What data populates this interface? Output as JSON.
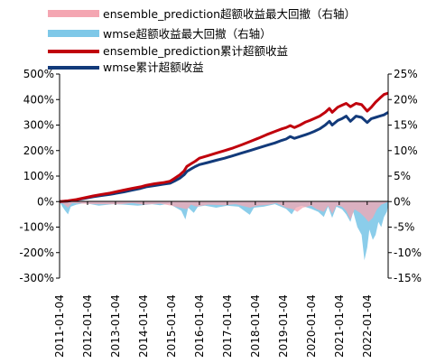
{
  "chart_data": {
    "type": "line",
    "legend_placement": "top",
    "grid": false,
    "x_ticks": [
      "2011-01-04",
      "2012-01-04",
      "2013-01-04",
      "2014-01-04",
      "2015-01-04",
      "2016-01-04",
      "2017-01-04",
      "2018-01-04",
      "2019-01-04",
      "2020-01-04",
      "2021-01-04",
      "2022-01-04"
    ],
    "x_range": [
      2011.0,
      2022.75
    ],
    "y_left": {
      "ticks": [
        "500%",
        "400%",
        "300%",
        "200%",
        "100%",
        "0%",
        "-100%",
        "-200%",
        "-300%"
      ],
      "range": [
        -300,
        500
      ],
      "unit": "%"
    },
    "y_right": {
      "ticks": [
        "25%",
        "20%",
        "15%",
        "10%",
        "5%",
        "0%",
        "-5%",
        "-10%",
        "-15%"
      ],
      "range": [
        -15,
        25
      ],
      "unit": "%"
    },
    "legend": [
      {
        "label": "ensemble_prediction超额收益最大回撤（右轴）",
        "kind": "area",
        "color": "#f4a6b2"
      },
      {
        "label": "wmse超额收益最大回撤（右轴）",
        "kind": "area",
        "color": "#7ec8e8"
      },
      {
        "label": "ensemble_prediction累计超额收益",
        "kind": "line",
        "color": "#c0000c"
      },
      {
        "label": "wmse累计超额收益",
        "kind": "line",
        "color": "#123a7a"
      }
    ],
    "series": [
      {
        "name": "ensemble_prediction累计超额收益",
        "axis": "left",
        "color": "#c0000c",
        "points": [
          [
            2011.0,
            0
          ],
          [
            2011.3,
            3
          ],
          [
            2011.6,
            8
          ],
          [
            2011.9,
            15
          ],
          [
            2012.2,
            22
          ],
          [
            2012.5,
            28
          ],
          [
            2012.8,
            33
          ],
          [
            2013.0,
            38
          ],
          [
            2013.3,
            45
          ],
          [
            2013.6,
            52
          ],
          [
            2013.9,
            58
          ],
          [
            2014.1,
            64
          ],
          [
            2014.4,
            70
          ],
          [
            2014.7,
            74
          ],
          [
            2014.95,
            80
          ],
          [
            2015.1,
            90
          ],
          [
            2015.3,
            105
          ],
          [
            2015.45,
            120
          ],
          [
            2015.55,
            138
          ],
          [
            2015.7,
            148
          ],
          [
            2015.85,
            158
          ],
          [
            2016.0,
            170
          ],
          [
            2016.3,
            180
          ],
          [
            2016.6,
            190
          ],
          [
            2016.9,
            200
          ],
          [
            2017.2,
            210
          ],
          [
            2017.5,
            222
          ],
          [
            2017.8,
            235
          ],
          [
            2018.1,
            248
          ],
          [
            2018.4,
            262
          ],
          [
            2018.7,
            275
          ],
          [
            2018.95,
            285
          ],
          [
            2019.1,
            290
          ],
          [
            2019.25,
            298
          ],
          [
            2019.4,
            290
          ],
          [
            2019.6,
            300
          ],
          [
            2019.8,
            312
          ],
          [
            2019.95,
            318
          ],
          [
            2020.1,
            325
          ],
          [
            2020.3,
            335
          ],
          [
            2020.5,
            350
          ],
          [
            2020.65,
            365
          ],
          [
            2020.75,
            350
          ],
          [
            2020.95,
            370
          ],
          [
            2021.1,
            378
          ],
          [
            2021.25,
            385
          ],
          [
            2021.4,
            372
          ],
          [
            2021.6,
            385
          ],
          [
            2021.8,
            380
          ],
          [
            2022.0,
            355
          ],
          [
            2022.15,
            370
          ],
          [
            2022.3,
            390
          ],
          [
            2022.45,
            405
          ],
          [
            2022.6,
            420
          ],
          [
            2022.75,
            425
          ]
        ]
      },
      {
        "name": "wmse累计超额收益",
        "axis": "left",
        "color": "#123a7a",
        "points": [
          [
            2011.0,
            0
          ],
          [
            2011.3,
            2
          ],
          [
            2011.6,
            7
          ],
          [
            2011.9,
            13
          ],
          [
            2012.2,
            19
          ],
          [
            2012.5,
            24
          ],
          [
            2012.8,
            28
          ],
          [
            2013.0,
            32
          ],
          [
            2013.3,
            38
          ],
          [
            2013.6,
            45
          ],
          [
            2013.9,
            52
          ],
          [
            2014.1,
            58
          ],
          [
            2014.4,
            63
          ],
          [
            2014.7,
            68
          ],
          [
            2014.95,
            72
          ],
          [
            2015.1,
            80
          ],
          [
            2015.3,
            92
          ],
          [
            2015.45,
            105
          ],
          [
            2015.55,
            118
          ],
          [
            2015.7,
            128
          ],
          [
            2015.85,
            137
          ],
          [
            2016.0,
            145
          ],
          [
            2016.3,
            153
          ],
          [
            2016.6,
            162
          ],
          [
            2016.9,
            170
          ],
          [
            2017.2,
            180
          ],
          [
            2017.5,
            190
          ],
          [
            2017.8,
            200
          ],
          [
            2018.1,
            210
          ],
          [
            2018.4,
            220
          ],
          [
            2018.7,
            230
          ],
          [
            2018.95,
            240
          ],
          [
            2019.1,
            245
          ],
          [
            2019.25,
            255
          ],
          [
            2019.4,
            248
          ],
          [
            2019.6,
            255
          ],
          [
            2019.8,
            262
          ],
          [
            2019.95,
            268
          ],
          [
            2020.1,
            275
          ],
          [
            2020.3,
            285
          ],
          [
            2020.5,
            300
          ],
          [
            2020.65,
            315
          ],
          [
            2020.75,
            300
          ],
          [
            2020.95,
            318
          ],
          [
            2021.1,
            325
          ],
          [
            2021.25,
            335
          ],
          [
            2021.4,
            315
          ],
          [
            2021.6,
            335
          ],
          [
            2021.8,
            330
          ],
          [
            2022.0,
            310
          ],
          [
            2022.15,
            325
          ],
          [
            2022.3,
            330
          ],
          [
            2022.45,
            335
          ],
          [
            2022.6,
            340
          ],
          [
            2022.75,
            350
          ]
        ]
      },
      {
        "name": "ensemble_prediction超额收益最大回撤（右轴）",
        "axis": "right",
        "color": "#f4a6b2",
        "points": [
          [
            2011.0,
            0
          ],
          [
            2011.15,
            -0.5
          ],
          [
            2011.3,
            -1.2
          ],
          [
            2011.45,
            -0.3
          ],
          [
            2011.8,
            -0.4
          ],
          [
            2012.3,
            -0.5
          ],
          [
            2013.2,
            -0.5
          ],
          [
            2013.6,
            -0.3
          ],
          [
            2014.0,
            -0.6
          ],
          [
            2014.6,
            -0.4
          ],
          [
            2015.0,
            -0.8
          ],
          [
            2015.55,
            -1.5
          ],
          [
            2015.7,
            -0.6
          ],
          [
            2015.9,
            -1.0
          ],
          [
            2016.3,
            -0.6
          ],
          [
            2016.9,
            -0.7
          ],
          [
            2017.3,
            -0.5
          ],
          [
            2017.8,
            -1.2
          ],
          [
            2018.1,
            -0.8
          ],
          [
            2018.5,
            -0.6
          ],
          [
            2018.75,
            -0.3
          ],
          [
            2019.1,
            -1.2
          ],
          [
            2019.35,
            -1.5
          ],
          [
            2019.5,
            -2.0
          ],
          [
            2019.7,
            -1.2
          ],
          [
            2020.0,
            -0.8
          ],
          [
            2020.2,
            -1.5
          ],
          [
            2020.45,
            -2.0
          ],
          [
            2020.6,
            -0.8
          ],
          [
            2020.75,
            -2.4
          ],
          [
            2020.9,
            -0.8
          ],
          [
            2021.1,
            -1.0
          ],
          [
            2021.25,
            -1.8
          ],
          [
            2021.4,
            -3.5
          ],
          [
            2021.55,
            -1.5
          ],
          [
            2021.75,
            -2.2
          ],
          [
            2021.9,
            -3.0
          ],
          [
            2022.05,
            -4.0
          ],
          [
            2022.2,
            -3.2
          ],
          [
            2022.35,
            -1.5
          ],
          [
            2022.5,
            -0.6
          ],
          [
            2022.65,
            -0.3
          ],
          [
            2022.75,
            0
          ]
        ]
      },
      {
        "name": "wmse超额收益最大回撤（右轴）",
        "axis": "right",
        "color": "#7ec8e8",
        "points": [
          [
            2011.0,
            0
          ],
          [
            2011.1,
            -1.0
          ],
          [
            2011.2,
            -1.8
          ],
          [
            2011.3,
            -2.5
          ],
          [
            2011.4,
            -1.0
          ],
          [
            2011.6,
            -0.6
          ],
          [
            2011.9,
            -0.3
          ],
          [
            2012.4,
            -0.8
          ],
          [
            2012.9,
            -0.5
          ],
          [
            2013.3,
            -0.6
          ],
          [
            2013.8,
            -0.8
          ],
          [
            2014.3,
            -0.5
          ],
          [
            2014.6,
            -0.7
          ],
          [
            2014.9,
            -0.4
          ],
          [
            2015.1,
            -1.0
          ],
          [
            2015.35,
            -1.8
          ],
          [
            2015.5,
            -3.5
          ],
          [
            2015.6,
            -1.2
          ],
          [
            2015.8,
            -2.2
          ],
          [
            2015.95,
            -1.0
          ],
          [
            2016.2,
            -0.8
          ],
          [
            2016.6,
            -1.2
          ],
          [
            2017.0,
            -0.8
          ],
          [
            2017.4,
            -1.0
          ],
          [
            2017.8,
            -2.6
          ],
          [
            2017.95,
            -1.2
          ],
          [
            2018.3,
            -1.0
          ],
          [
            2018.7,
            -0.5
          ],
          [
            2019.1,
            -1.4
          ],
          [
            2019.3,
            -2.5
          ],
          [
            2019.45,
            -1.2
          ],
          [
            2019.65,
            -0.8
          ],
          [
            2020.0,
            -1.4
          ],
          [
            2020.25,
            -2.0
          ],
          [
            2020.45,
            -3.0
          ],
          [
            2020.6,
            -1.0
          ],
          [
            2020.75,
            -3.2
          ],
          [
            2020.9,
            -1.0
          ],
          [
            2021.1,
            -1.5
          ],
          [
            2021.25,
            -2.5
          ],
          [
            2021.4,
            -4.0
          ],
          [
            2021.5,
            -2.0
          ],
          [
            2021.65,
            -5.0
          ],
          [
            2021.8,
            -6.5
          ],
          [
            2021.9,
            -11.5
          ],
          [
            2022.0,
            -9.0
          ],
          [
            2022.08,
            -5.5
          ],
          [
            2022.2,
            -7.5
          ],
          [
            2022.3,
            -6.5
          ],
          [
            2022.4,
            -4.0
          ],
          [
            2022.5,
            -5.0
          ],
          [
            2022.6,
            -3.0
          ],
          [
            2022.7,
            -2.0
          ],
          [
            2022.75,
            -0.8
          ]
        ]
      }
    ]
  }
}
